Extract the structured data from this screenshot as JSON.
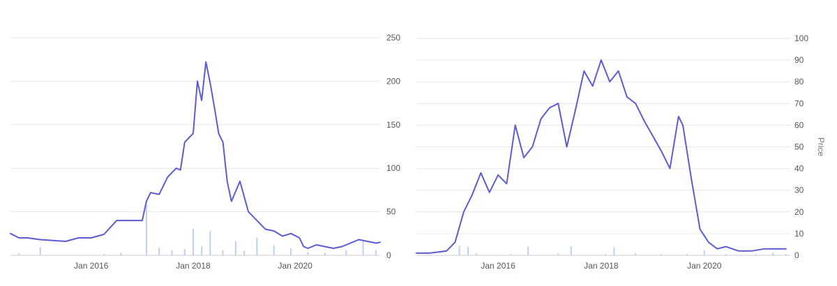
{
  "chart_data": [
    {
      "type": "line",
      "ylabel": "Price",
      "ylim": [
        0,
        250
      ],
      "yticks": [
        0,
        50,
        100,
        150,
        200,
        250
      ],
      "xlim": [
        "2014-06",
        "2021-09"
      ],
      "xticks": [
        {
          "date": "2016-01",
          "label": "Jan 2016"
        },
        {
          "date": "2018-01",
          "label": "Jan 2018"
        },
        {
          "date": "2020-01",
          "label": "Jan 2020"
        }
      ],
      "grid": true,
      "colors": {
        "line": "#5b5bd6",
        "volume": "#bcd0f0"
      },
      "series": [
        {
          "kind": "price",
          "x": [
            "2014-06",
            "2014-08",
            "2014-10",
            "2015-01",
            "2015-04",
            "2015-07",
            "2015-10",
            "2016-01",
            "2016-04",
            "2016-07",
            "2016-10",
            "2017-01",
            "2017-02",
            "2017-03",
            "2017-05",
            "2017-07",
            "2017-09",
            "2017-10",
            "2017-11",
            "2017-12",
            "2018-01",
            "2018-02",
            "2018-03",
            "2018-04",
            "2018-05",
            "2018-06",
            "2018-07",
            "2018-08",
            "2018-09",
            "2018-10",
            "2018-12",
            "2019-02",
            "2019-04",
            "2019-06",
            "2019-08",
            "2019-10",
            "2019-12",
            "2020-02",
            "2020-03",
            "2020-04",
            "2020-06",
            "2020-08",
            "2020-10",
            "2020-12",
            "2021-02",
            "2021-04",
            "2021-06",
            "2021-08",
            "2021-09"
          ],
          "y": [
            25,
            20,
            20,
            18,
            17,
            16,
            20,
            20,
            24,
            40,
            40,
            40,
            62,
            72,
            70,
            90,
            100,
            98,
            130,
            135,
            140,
            200,
            178,
            222,
            198,
            170,
            140,
            130,
            85,
            62,
            85,
            50,
            40,
            30,
            28,
            22,
            25,
            20,
            10,
            8,
            12,
            10,
            8,
            10,
            14,
            18,
            16,
            14,
            15
          ]
        },
        {
          "kind": "volume",
          "x": [
            "2014-08",
            "2015-01",
            "2016-04",
            "2016-08",
            "2017-02",
            "2017-05",
            "2017-08",
            "2017-11",
            "2018-01",
            "2018-03",
            "2018-05",
            "2018-08",
            "2018-11",
            "2019-01",
            "2019-04",
            "2019-08",
            "2019-12",
            "2020-04",
            "2020-08",
            "2021-01",
            "2021-05",
            "2021-08"
          ],
          "y": [
            3,
            13,
            2,
            4,
            80,
            12,
            8,
            10,
            42,
            14,
            38,
            8,
            22,
            7,
            28,
            16,
            11,
            5,
            4,
            8,
            22,
            8
          ]
        }
      ]
    },
    {
      "type": "line",
      "ylabel": "Price",
      "ylim": [
        0,
        100
      ],
      "yticks": [
        0,
        10,
        20,
        30,
        40,
        50,
        60,
        70,
        80,
        90,
        100
      ],
      "xlim": [
        "2014-06",
        "2021-09"
      ],
      "xticks": [
        {
          "date": "2016-01",
          "label": "Jan 2016"
        },
        {
          "date": "2018-01",
          "label": "Jan 2018"
        },
        {
          "date": "2020-01",
          "label": "Jan 2020"
        }
      ],
      "grid": true,
      "colors": {
        "line": "#5b5bd6",
        "volume": "#bcd0f0"
      },
      "series": [
        {
          "kind": "price",
          "x": [
            "2014-06",
            "2014-09",
            "2015-01",
            "2015-03",
            "2015-05",
            "2015-07",
            "2015-09",
            "2015-11",
            "2016-01",
            "2016-03",
            "2016-05",
            "2016-07",
            "2016-09",
            "2016-11",
            "2017-01",
            "2017-03",
            "2017-05",
            "2017-07",
            "2017-09",
            "2017-11",
            "2018-01",
            "2018-03",
            "2018-05",
            "2018-07",
            "2018-09",
            "2018-11",
            "2019-01",
            "2019-03",
            "2019-05",
            "2019-07",
            "2019-08",
            "2019-10",
            "2019-12",
            "2020-02",
            "2020-04",
            "2020-06",
            "2020-09",
            "2020-12",
            "2021-03",
            "2021-06",
            "2021-08"
          ],
          "y": [
            1,
            1,
            2,
            6,
            20,
            28,
            38,
            29,
            37,
            33,
            60,
            45,
            50,
            63,
            68,
            70,
            50,
            67,
            85,
            78,
            90,
            80,
            85,
            73,
            70,
            62,
            55,
            48,
            40,
            64,
            60,
            35,
            12,
            6,
            3,
            4,
            2,
            2,
            3,
            3,
            3
          ]
        },
        {
          "kind": "volume",
          "x": [
            "2014-09",
            "2015-04",
            "2015-06",
            "2015-08",
            "2016-04",
            "2016-08",
            "2017-03",
            "2017-06",
            "2018-02",
            "2018-04",
            "2018-09",
            "2019-03",
            "2019-09",
            "2020-01",
            "2020-06",
            "2021-01",
            "2021-05",
            "2021-08"
          ],
          "y": [
            1,
            15,
            13,
            3,
            2,
            14,
            3,
            14,
            2,
            13,
            3,
            2,
            2,
            8,
            2,
            2,
            4,
            2
          ]
        }
      ]
    }
  ]
}
